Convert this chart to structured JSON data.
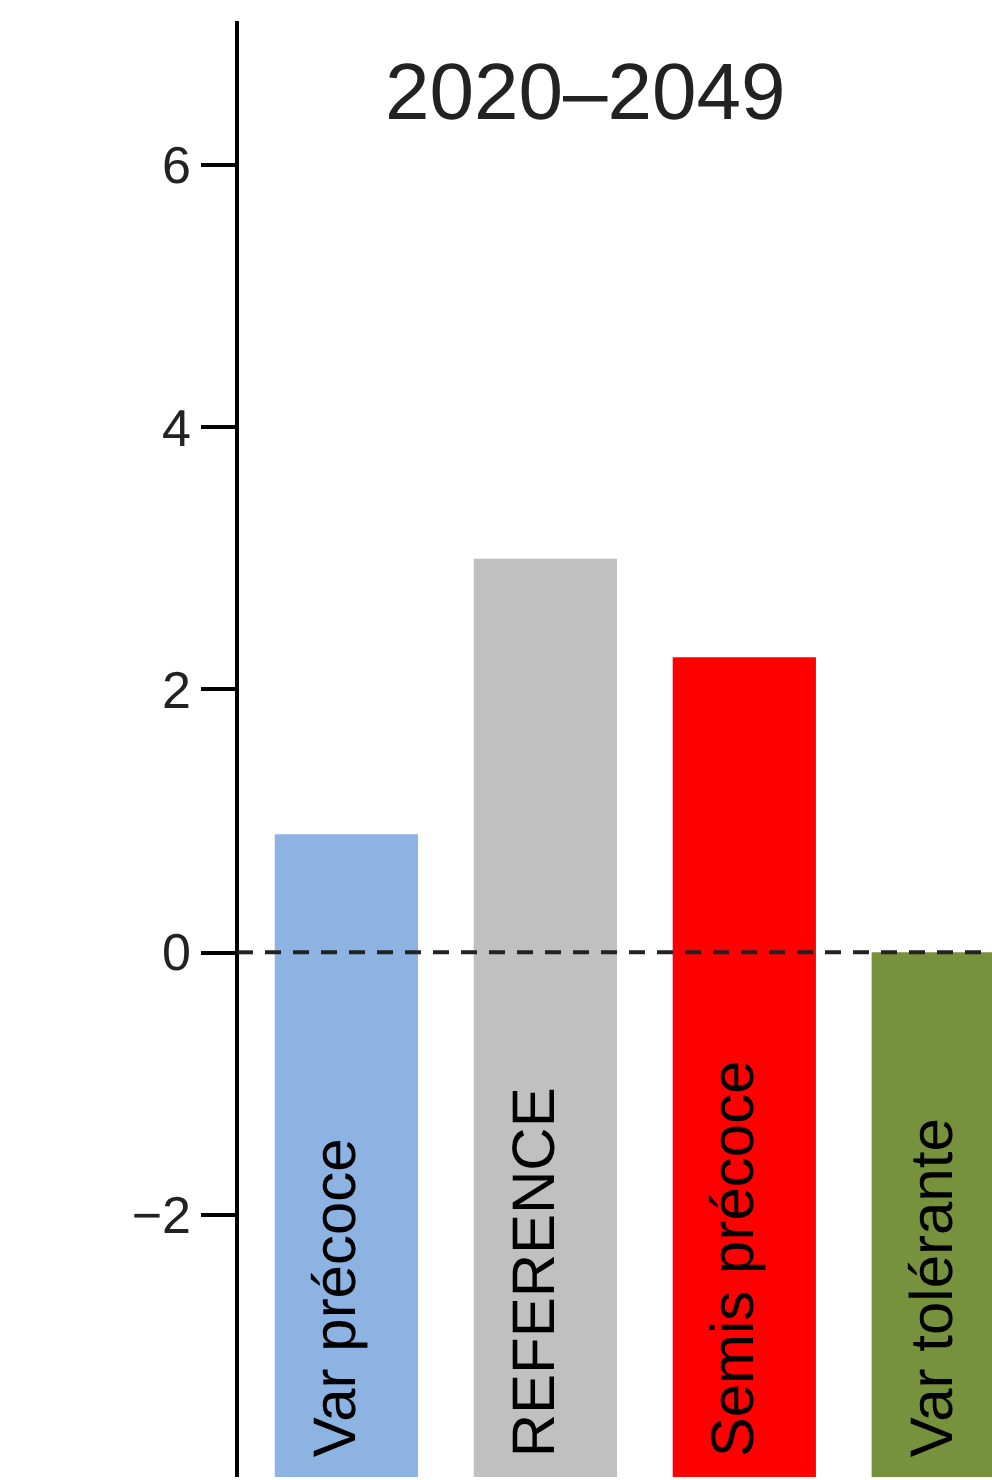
{
  "chart_data": {
    "type": "bar",
    "title": "2020–2049",
    "categories": [
      "Var précoce",
      "REFERENCE",
      "Semis précoce",
      "Var tolérante"
    ],
    "base": [
      -4,
      -4,
      -4,
      -4
    ],
    "values": [
      4.9,
      7.0,
      6.25,
      4.0
    ],
    "colors": [
      "#8db3e2",
      "#c0c0c0",
      "#ff0000",
      "#76923c"
    ],
    "ylim": [
      -4,
      7.1
    ],
    "yticks": [
      -2,
      0,
      2,
      4,
      6
    ],
    "ref_lines": [
      {
        "axis": "y",
        "value": 0,
        "label": null,
        "color": "#222222",
        "line_style": "dashed"
      }
    ],
    "grid": false
  }
}
